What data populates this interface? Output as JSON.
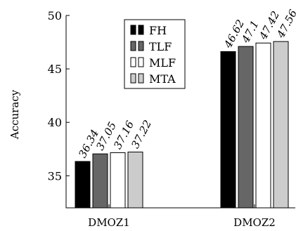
{
  "chart_data": {
    "type": "bar",
    "ylabel": "Accuracy",
    "xlabel": "",
    "ylim": [
      32,
      50
    ],
    "yticks": [
      35,
      40,
      45,
      50
    ],
    "categories": [
      "DMOZ1",
      "DMOZ2"
    ],
    "legend_position": "top-center",
    "grid": false,
    "series": [
      {
        "name": "FH",
        "color": "#000000",
        "values": [
          36.34,
          46.62
        ],
        "labels": [
          "36.34",
          "46.62"
        ]
      },
      {
        "name": "TLF",
        "color": "#666666",
        "values": [
          37.05,
          47.1
        ],
        "labels": [
          "37.05",
          "47.1"
        ]
      },
      {
        "name": "MLF",
        "color": "#ffffff",
        "values": [
          37.16,
          47.42
        ],
        "labels": [
          "37.16",
          "47.42"
        ]
      },
      {
        "name": "MTA",
        "color": "#cccccc",
        "values": [
          37.22,
          47.56
        ],
        "labels": [
          "37.22",
          "47.56"
        ]
      }
    ]
  }
}
